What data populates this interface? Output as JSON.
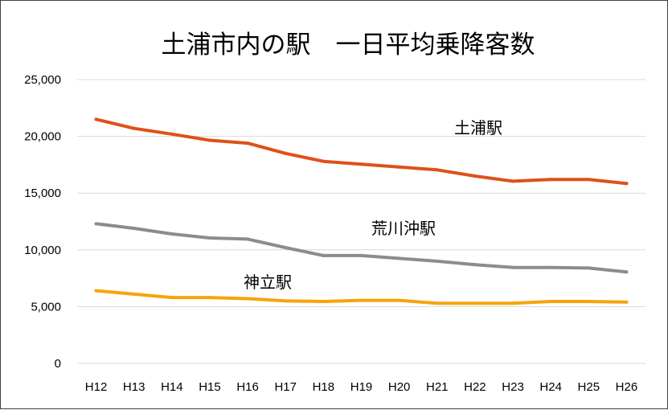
{
  "chart_data": {
    "type": "line",
    "title": "土浦市内の駅　一日平均乗降客数",
    "xlabel": "",
    "ylabel": "",
    "categories": [
      "H12",
      "H13",
      "H14",
      "H15",
      "H16",
      "H17",
      "H18",
      "H19",
      "H20",
      "H21",
      "H22",
      "H23",
      "H24",
      "H25",
      "H26"
    ],
    "ylim": [
      0,
      25000
    ],
    "yticks": [
      0,
      5000,
      10000,
      15000,
      20000,
      25000
    ],
    "ytick_labels": [
      "0",
      "5,000",
      "10,000",
      "15,000",
      "20,000",
      "25,000"
    ],
    "grid": true,
    "legend": "none",
    "series": [
      {
        "name": "土浦駅",
        "color": "#E0501A",
        "values": [
          21500,
          20700,
          20200,
          19650,
          19400,
          18500,
          17800,
          17550,
          17300,
          17050,
          16500,
          16050,
          16200,
          16200,
          15850
        ]
      },
      {
        "name": "荒川沖駅",
        "color": "#8C8C8C",
        "values": [
          12300,
          11900,
          11400,
          11050,
          10950,
          10200,
          9500,
          9500,
          9250,
          9000,
          8700,
          8450,
          8450,
          8400,
          8050
        ]
      },
      {
        "name": "神立駅",
        "color": "#F5A50C",
        "values": [
          6400,
          6100,
          5800,
          5800,
          5700,
          5500,
          5450,
          5550,
          5550,
          5300,
          5300,
          5300,
          5450,
          5450,
          5400
        ]
      }
    ]
  }
}
